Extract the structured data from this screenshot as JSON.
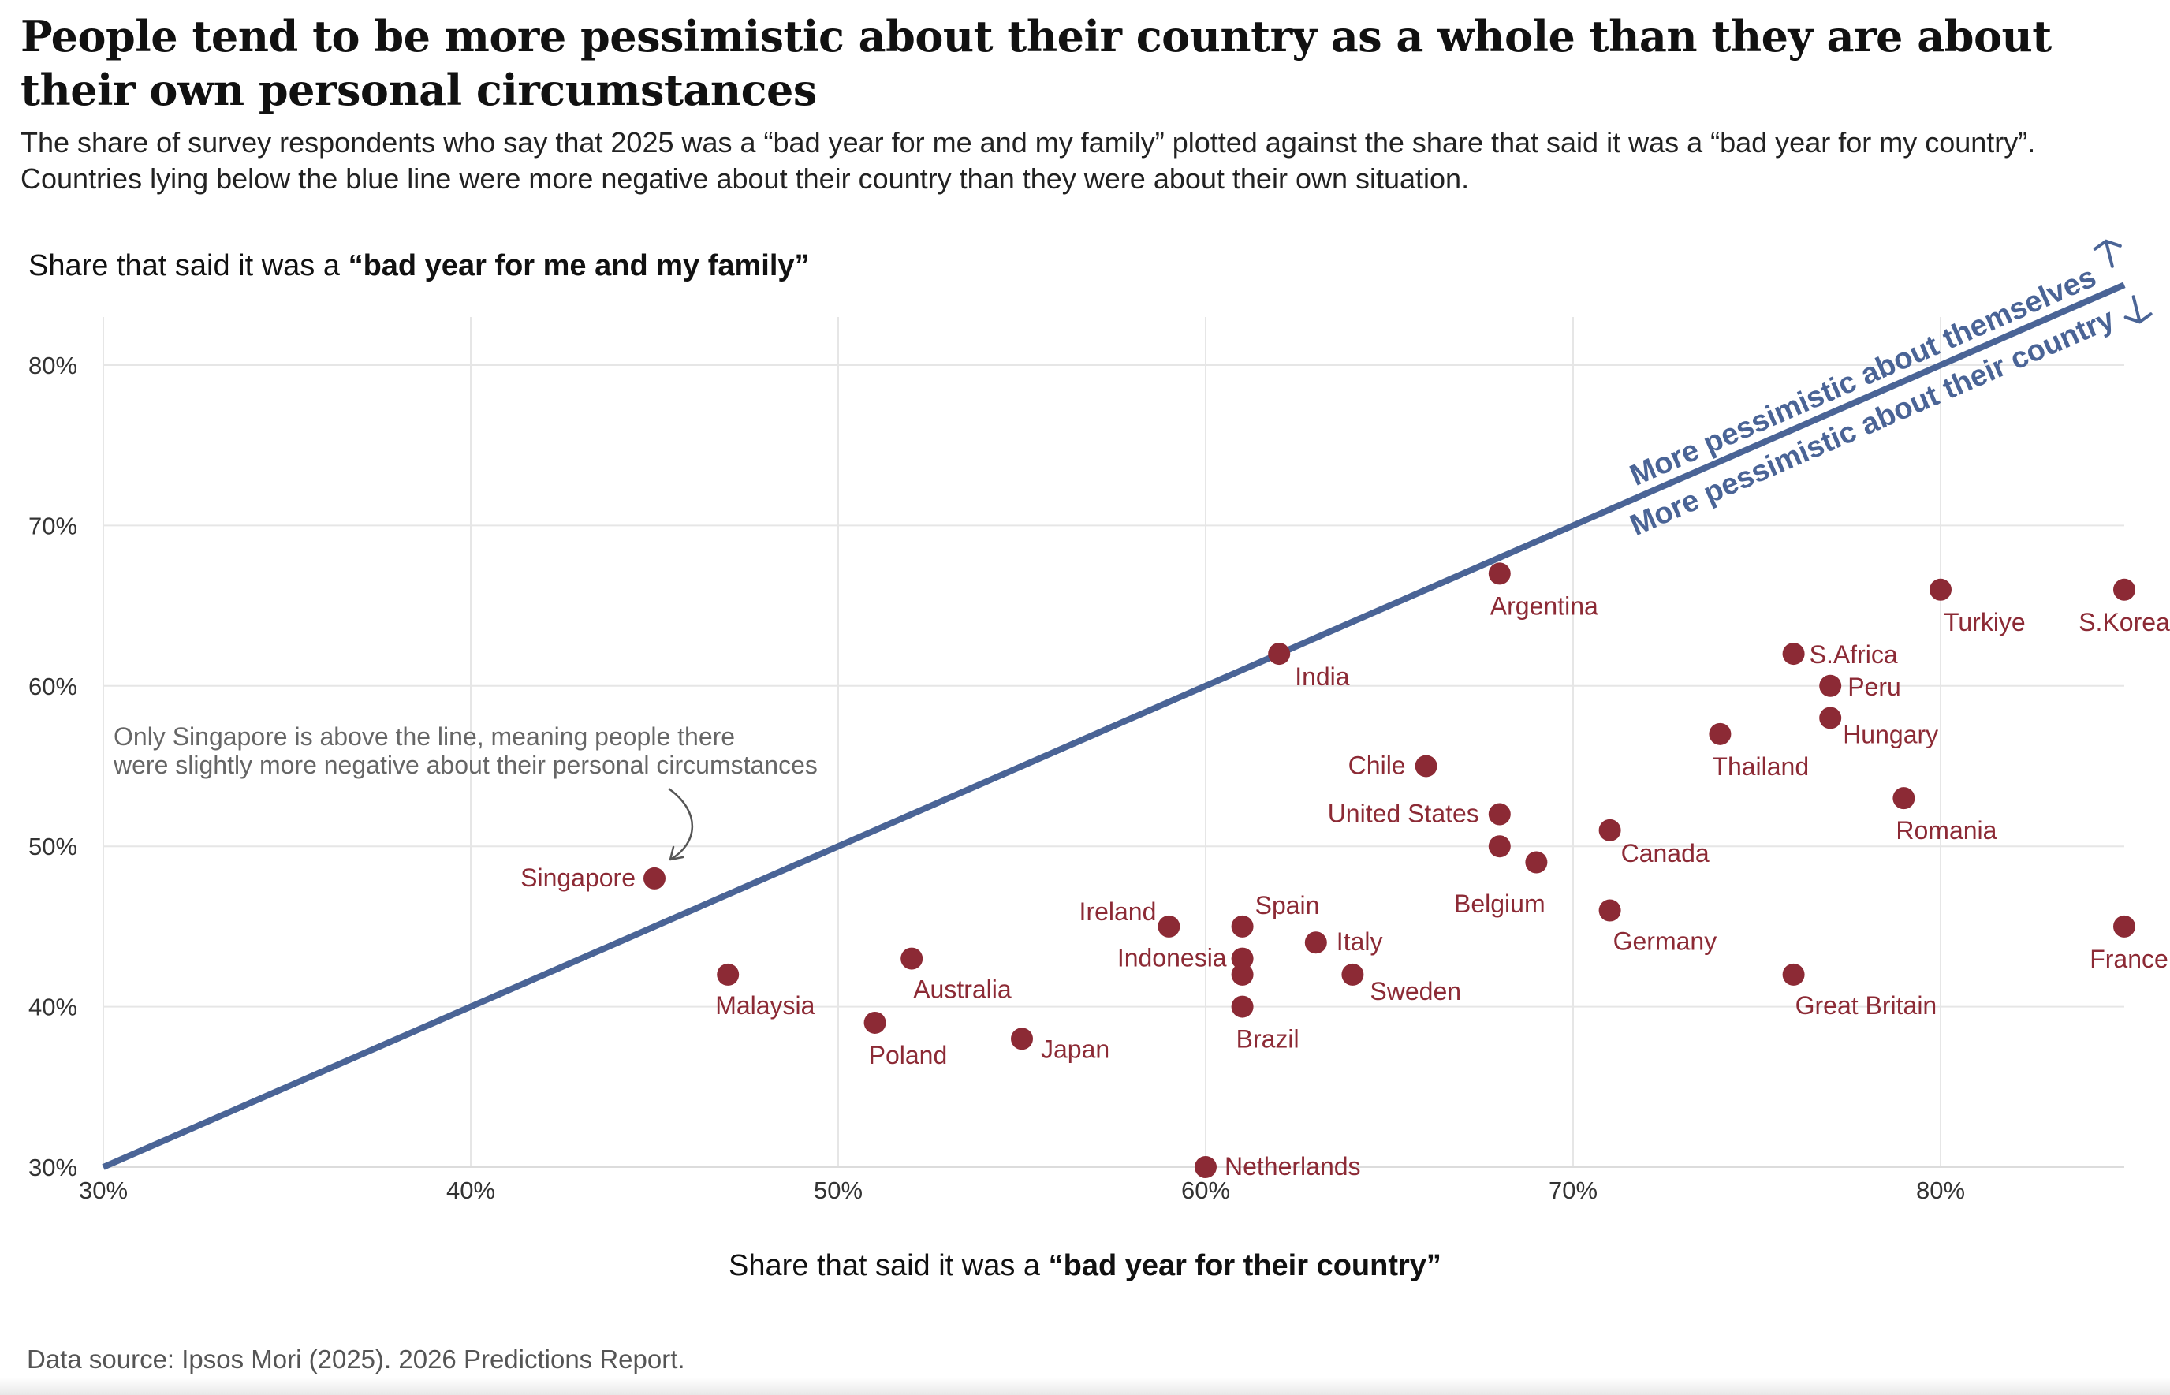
{
  "title": "People tend to be more pessimistic about their country as a whole than they are about their own personal circumstances",
  "subtitle": "The share of survey respondents who say that 2025 was a “bad year for me and my family” plotted against the share that said it was a “bad year for my country”. Countries lying below the blue line were more negative about their country than they were about their own situation.",
  "source": "Data source: Ipsos Mori (2025). 2026 Predictions Report.",
  "colors": {
    "points": "#8c2a35",
    "line": "#4a6496",
    "grid": "#e6e6e6"
  },
  "chart_data": {
    "type": "scatter",
    "title": "People tend to be more pessimistic about their country as a whole than they are about their own personal circumstances",
    "ylabel_prefix": "Share that said it was a ",
    "ylabel_bold": "“bad year for me and my family”",
    "xlabel_prefix": "Share that said it was a ",
    "xlabel_bold": "“bad year for their country”",
    "xlim": [
      30,
      85
    ],
    "ylim": [
      30,
      83
    ],
    "x_ticks": [
      30,
      40,
      50,
      60,
      70,
      80
    ],
    "y_ticks": [
      30,
      40,
      50,
      60,
      70,
      80
    ],
    "x_tick_labels": [
      "30%",
      "40%",
      "50%",
      "60%",
      "70%",
      "80%"
    ],
    "y_tick_labels": [
      "30%",
      "40%",
      "50%",
      "60%",
      "70%",
      "80%"
    ],
    "grid": true,
    "reference_line": {
      "type": "y=x",
      "from": 30,
      "to": 85
    },
    "diagonal_labels": [
      "More pessimistic about themselves",
      "More pessimistic about their country"
    ],
    "annotation": "Only Singapore is above the line, meaning people there were slightly more negative about their personal circumstances",
    "annotation_lines": [
      "Only Singapore is above the line, meaning people there",
      "were slightly more negative about their personal circumstances"
    ],
    "points": [
      {
        "name": "Argentina",
        "x": 68,
        "y": 67
      },
      {
        "name": "India",
        "x": 62,
        "y": 62
      },
      {
        "name": "Turkiye",
        "x": 80,
        "y": 66
      },
      {
        "name": "S.Korea",
        "x": 85,
        "y": 66
      },
      {
        "name": "S.Africa",
        "x": 76,
        "y": 62
      },
      {
        "name": "Peru",
        "x": 77,
        "y": 60
      },
      {
        "name": "Hungary",
        "x": 77,
        "y": 58
      },
      {
        "name": "Thailand",
        "x": 74,
        "y": 57
      },
      {
        "name": "Chile",
        "x": 66,
        "y": 55
      },
      {
        "name": "Romania",
        "x": 79,
        "y": 53
      },
      {
        "name": "United States",
        "x": 68,
        "y": 52
      },
      {
        "name": "Canada",
        "x": 71,
        "y": 51
      },
      {
        "name": "Belgium",
        "x": 68,
        "y": 50
      },
      {
        "name": "Belgium",
        "x": 69,
        "y": 49
      },
      {
        "name": "Singapore",
        "x": 45,
        "y": 48
      },
      {
        "name": "Germany",
        "x": 71,
        "y": 46
      },
      {
        "name": "Ireland",
        "x": 59,
        "y": 45
      },
      {
        "name": "Spain",
        "x": 61,
        "y": 45
      },
      {
        "name": "France",
        "x": 85,
        "y": 45
      },
      {
        "name": "Italy",
        "x": 63,
        "y": 44
      },
      {
        "name": "Australia",
        "x": 52,
        "y": 43
      },
      {
        "name": "Indonesia",
        "x": 61,
        "y": 43
      },
      {
        "name": "Malaysia",
        "x": 47,
        "y": 42
      },
      {
        "name": "Indonesia",
        "x": 61,
        "y": 42
      },
      {
        "name": "Sweden",
        "x": 64,
        "y": 42
      },
      {
        "name": "Great Britain",
        "x": 76,
        "y": 42
      },
      {
        "name": "Brazil",
        "x": 61,
        "y": 40
      },
      {
        "name": "Poland",
        "x": 51,
        "y": 39
      },
      {
        "name": "Japan",
        "x": 55,
        "y": 38
      },
      {
        "name": "Netherlands",
        "x": 60,
        "y": 30
      }
    ],
    "labels": [
      {
        "text": "Argentina",
        "anchor": "start",
        "dx": -12,
        "dy": 52
      },
      {
        "text": "India",
        "anchor": "start",
        "dx": 20,
        "dy": 40
      },
      {
        "text": "Turkiye",
        "anchor": "start",
        "dx": 4,
        "dy": 52
      },
      {
        "text": "S.Korea",
        "anchor": "middle",
        "dx": 0,
        "dy": 52
      },
      {
        "text": "S.Africa",
        "anchor": "start",
        "dx": 20,
        "dy": 12
      },
      {
        "text": "Peru",
        "anchor": "start",
        "dx": 22,
        "dy": 12
      },
      {
        "text": "Hungary",
        "anchor": "start",
        "dx": 16,
        "dy": 32
      },
      {
        "text": "Thailand",
        "anchor": "start",
        "dx": -10,
        "dy": 52
      },
      {
        "text": "Chile",
        "anchor": "end",
        "dx": -26,
        "dy": 10
      },
      {
        "text": "Romania",
        "anchor": "start",
        "dx": -10,
        "dy": 52
      },
      {
        "text": "United States",
        "anchor": "end",
        "dx": -26,
        "dy": 10
      },
      {
        "text": "Canada",
        "anchor": "start",
        "dx": 14,
        "dy": 40
      },
      {
        "text": "Belgium",
        "anchor": "middle",
        "dx": 0,
        "dy": 84
      },
      {
        "text": "Singapore",
        "anchor": "end",
        "dx": -24,
        "dy": 10
      },
      {
        "text": "Germany",
        "anchor": "start",
        "dx": 4,
        "dy": 50
      },
      {
        "text": "Ireland",
        "anchor": "end",
        "dx": -16,
        "dy": -8
      },
      {
        "text": "Spain",
        "anchor": "start",
        "dx": 16,
        "dy": -16
      },
      {
        "text": "France",
        "anchor": "middle",
        "dx": 6,
        "dy": 52
      },
      {
        "text": "Italy",
        "anchor": "start",
        "dx": 26,
        "dy": 10
      },
      {
        "text": "Australia",
        "anchor": "start",
        "dx": 2,
        "dy": 50
      },
      {
        "text": "Indonesia",
        "anchor": "end",
        "dx": -20,
        "dy": 10
      },
      {
        "text": "Malaysia",
        "anchor": "start",
        "dx": -16,
        "dy": 50
      },
      {
        "text": "Sweden",
        "anchor": "start",
        "dx": 22,
        "dy": 32
      },
      {
        "text": "Great Britain",
        "anchor": "start",
        "dx": 2,
        "dy": 50
      },
      {
        "text": "Brazil",
        "anchor": "start",
        "dx": -8,
        "dy": 52
      },
      {
        "text": "Poland",
        "anchor": "start",
        "dx": -8,
        "dy": 52
      },
      {
        "text": "Japan",
        "anchor": "start",
        "dx": 24,
        "dy": 24
      },
      {
        "text": "Netherlands",
        "anchor": "start",
        "dx": 24,
        "dy": 10
      }
    ]
  }
}
